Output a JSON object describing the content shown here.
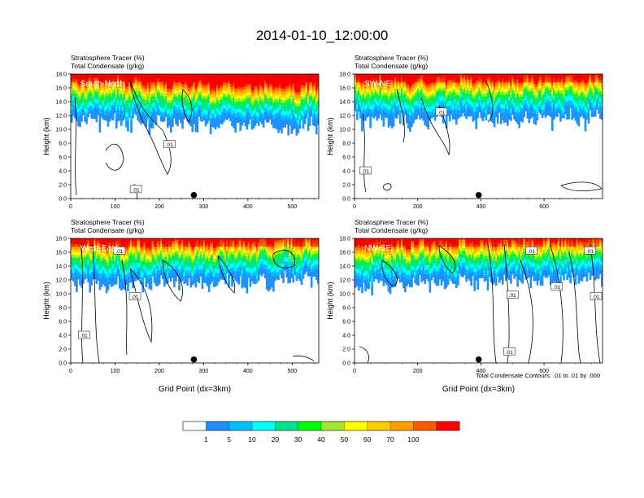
{
  "figure": {
    "title": "2014-01-10_12:00:00",
    "footnote": "Total Condensate Contours: .01 to .01 by .000"
  },
  "colorbar": {
    "ticks": [
      "1",
      "5",
      "10",
      "20",
      "30",
      "40",
      "50",
      "60",
      "70",
      "100"
    ],
    "colors": [
      "#ffffff",
      "#1e90ff",
      "#00bfff",
      "#00ffff",
      "#00e28c",
      "#00ff00",
      "#a0e632",
      "#ffff00",
      "#ffcc00",
      "#ffa000",
      "#ff5a00",
      "#ff0000"
    ]
  },
  "chart_data": [
    {
      "type": "heatmap",
      "panel_label": "South-North",
      "subtitle_lines": [
        "Stratosphere Tracer   (%)",
        "Total Condensate   (g/kg)"
      ],
      "ylabel": "Height (km)",
      "xlabel": "",
      "xlim": [
        0,
        560
      ],
      "ylim": [
        0,
        18
      ],
      "xticks": [
        "0",
        "100",
        "200",
        "300",
        "400",
        "500"
      ],
      "yticks": [
        "0.0",
        "2.0",
        "4.0",
        "6.0",
        "8.0",
        "10.0",
        "12.0",
        "14.0",
        "16.0",
        "18.0"
      ],
      "marker_x": 278,
      "contour_labels": [
        {
          "text": ".01",
          "x": 223,
          "y": 7.8
        },
        {
          "text": ".01",
          "x": 147,
          "y": 1.3
        }
      ]
    },
    {
      "type": "heatmap",
      "panel_label": "SW-NE",
      "subtitle_lines": [
        "Stratosphere Tracer   (%)",
        "Total Condensate   (g/kg)"
      ],
      "ylabel": "Height (km)",
      "xlabel": "",
      "xlim": [
        0,
        785
      ],
      "ylim": [
        0,
        18
      ],
      "xticks": [
        "0",
        "200",
        "400",
        "600"
      ],
      "yticks": [
        "0.0",
        "2.0",
        "4.0",
        "6.0",
        "8.0",
        "10.0",
        "12.0",
        "14.0",
        "16.0",
        "18.0"
      ],
      "marker_x": 393,
      "contour_labels": [
        {
          "text": ".01",
          "x": 275,
          "y": 12.5
        },
        {
          "text": ".01",
          "x": 35,
          "y": 4.0
        }
      ]
    },
    {
      "type": "heatmap",
      "panel_label": "West-East",
      "subtitle_lines": [
        "Stratosphere Tracer   (%)",
        "Total Condensate   (g/kg)"
      ],
      "ylabel": "Height (km)",
      "xlabel": "Grid Point (dx=3km)",
      "xlim": [
        0,
        560
      ],
      "ylim": [
        0,
        18
      ],
      "xticks": [
        "0",
        "100",
        "200",
        "300",
        "400",
        "500"
      ],
      "yticks": [
        "0.0",
        "2.0",
        "4.0",
        "6.0",
        "8.0",
        "10.0",
        "12.0",
        "14.0",
        "16.0",
        "18.0"
      ],
      "marker_x": 278,
      "contour_labels": [
        {
          "text": ".01",
          "x": 110,
          "y": 16.2
        },
        {
          "text": ".01",
          "x": 145,
          "y": 9.6
        },
        {
          "text": ".01",
          "x": 30,
          "y": 4.0
        }
      ]
    },
    {
      "type": "heatmap",
      "panel_label": "NW-SE",
      "subtitle_lines": [
        "Stratosphere Tracer   (%)",
        "Total Condensate   (g/kg)"
      ],
      "ylabel": "Height (km)",
      "xlabel": "Grid Point (dx=3km)",
      "xlim": [
        0,
        785
      ],
      "ylim": [
        0,
        18
      ],
      "xticks": [
        "0",
        "200",
        "400",
        "600"
      ],
      "yticks": [
        "0.0",
        "2.0",
        "4.0",
        "6.0",
        "8.0",
        "10.0",
        "12.0",
        "14.0",
        "16.0",
        "18.0"
      ],
      "marker_x": 393,
      "contour_labels": [
        {
          "text": ".01",
          "x": 745,
          "y": 16.2
        },
        {
          "text": ".01",
          "x": 560,
          "y": 16.2
        },
        {
          "text": ".01",
          "x": 500,
          "y": 9.8
        },
        {
          "text": ".01",
          "x": 640,
          "y": 11.0
        },
        {
          "text": ".01",
          "x": 785,
          "y": 9.6
        },
        {
          "text": ".01",
          "x": 490,
          "y": 1.6
        }
      ]
    }
  ]
}
